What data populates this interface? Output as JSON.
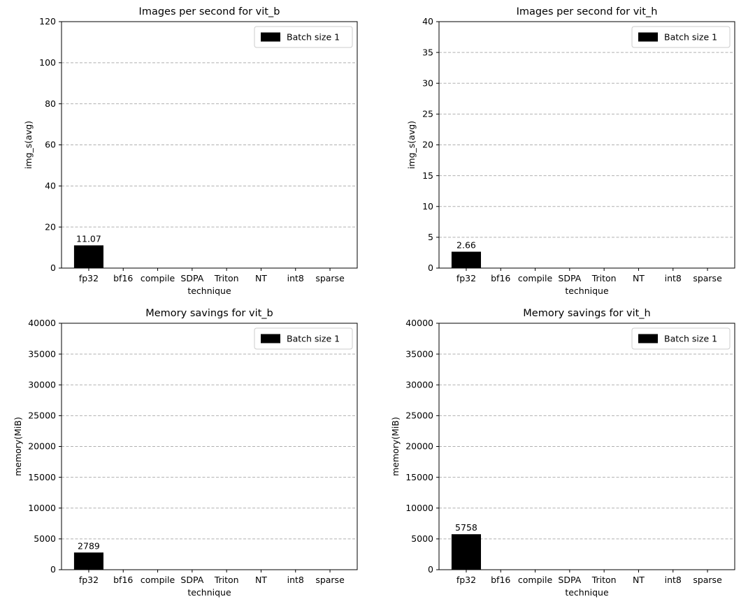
{
  "figure": {
    "background": "#ffffff",
    "layout": "2x2-grid-of-bar-charts"
  },
  "chart_data": [
    {
      "id": "images-per-second-vit_b",
      "type": "bar",
      "title": "Images per second for vit_b",
      "xlabel": "technique",
      "ylabel": "img_s(avg)",
      "categories": [
        "fp32",
        "bf16",
        "compile",
        "SDPA",
        "Triton",
        "NT",
        "int8",
        "sparse"
      ],
      "series": [
        {
          "name": "Batch size 1",
          "color": "#000000",
          "values": [
            11.07,
            0,
            0,
            0,
            0,
            0,
            0,
            0
          ]
        }
      ],
      "bar_labels": [
        "11.07",
        "",
        "",
        "",
        "",
        "",
        "",
        ""
      ],
      "ylim": [
        0,
        120
      ],
      "yticks": [
        0,
        20,
        40,
        60,
        80,
        100,
        120
      ],
      "legend": {
        "position": "upper right",
        "entries": [
          {
            "label": "Batch size 1",
            "color": "#000000"
          }
        ]
      },
      "grid": {
        "axis": "y",
        "style": "dashed",
        "color": "#b0b0b0"
      }
    },
    {
      "id": "images-per-second-vit_h",
      "type": "bar",
      "title": "Images per second for vit_h",
      "xlabel": "technique",
      "ylabel": "img_s(avg)",
      "categories": [
        "fp32",
        "bf16",
        "compile",
        "SDPA",
        "Triton",
        "NT",
        "int8",
        "sparse"
      ],
      "series": [
        {
          "name": "Batch size 1",
          "color": "#000000",
          "values": [
            2.66,
            0,
            0,
            0,
            0,
            0,
            0,
            0
          ]
        }
      ],
      "bar_labels": [
        "2.66",
        "",
        "",
        "",
        "",
        "",
        "",
        ""
      ],
      "ylim": [
        0,
        40
      ],
      "yticks": [
        0,
        5,
        10,
        15,
        20,
        25,
        30,
        35,
        40
      ],
      "legend": {
        "position": "upper right",
        "entries": [
          {
            "label": "Batch size 1",
            "color": "#000000"
          }
        ]
      },
      "grid": {
        "axis": "y",
        "style": "dashed",
        "color": "#b0b0b0"
      }
    },
    {
      "id": "memory-savings-vit_b",
      "type": "bar",
      "title": "Memory savings for vit_b",
      "xlabel": "technique",
      "ylabel": "memory(MiB)",
      "categories": [
        "fp32",
        "bf16",
        "compile",
        "SDPA",
        "Triton",
        "NT",
        "int8",
        "sparse"
      ],
      "series": [
        {
          "name": "Batch size 1",
          "color": "#000000",
          "values": [
            2789,
            0,
            0,
            0,
            0,
            0,
            0,
            0
          ]
        }
      ],
      "bar_labels": [
        "2789",
        "",
        "",
        "",
        "",
        "",
        "",
        ""
      ],
      "ylim": [
        0,
        40000
      ],
      "yticks": [
        0,
        5000,
        10000,
        15000,
        20000,
        25000,
        30000,
        35000,
        40000
      ],
      "legend": {
        "position": "upper right",
        "entries": [
          {
            "label": "Batch size 1",
            "color": "#000000"
          }
        ]
      },
      "grid": {
        "axis": "y",
        "style": "dashed",
        "color": "#b0b0b0"
      }
    },
    {
      "id": "memory-savings-vit_h",
      "type": "bar",
      "title": "Memory savings for vit_h",
      "xlabel": "technique",
      "ylabel": "memory(MiB)",
      "categories": [
        "fp32",
        "bf16",
        "compile",
        "SDPA",
        "Triton",
        "NT",
        "int8",
        "sparse"
      ],
      "series": [
        {
          "name": "Batch size 1",
          "color": "#000000",
          "values": [
            5758,
            0,
            0,
            0,
            0,
            0,
            0,
            0
          ]
        }
      ],
      "bar_labels": [
        "5758",
        "",
        "",
        "",
        "",
        "",
        "",
        ""
      ],
      "ylim": [
        0,
        40000
      ],
      "yticks": [
        0,
        5000,
        10000,
        15000,
        20000,
        25000,
        30000,
        35000,
        40000
      ],
      "legend": {
        "position": "upper right",
        "entries": [
          {
            "label": "Batch size 1",
            "color": "#000000"
          }
        ]
      },
      "grid": {
        "axis": "y",
        "style": "dashed",
        "color": "#b0b0b0"
      }
    }
  ]
}
